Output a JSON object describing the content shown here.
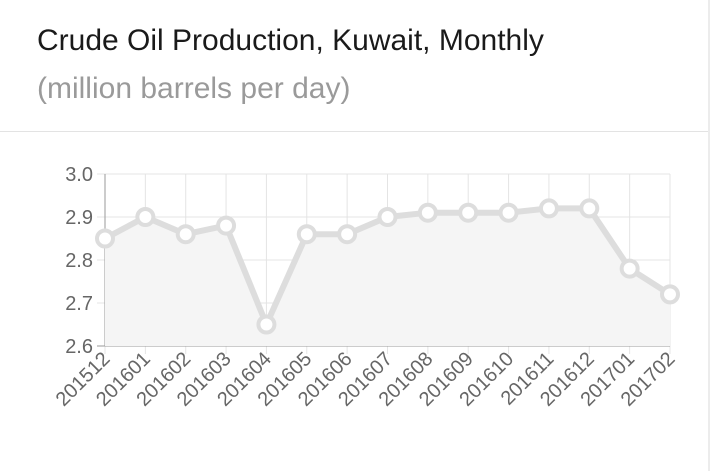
{
  "header": {
    "title": "Crude Oil Production, Kuwait, Monthly",
    "subtitle": "(million barrels per day)"
  },
  "chart_data": {
    "type": "line",
    "title": "Crude Oil Production, Kuwait, Monthly",
    "subtitle": "(million barrels per day)",
    "xlabel": "",
    "ylabel": "",
    "ylim": [
      2.6,
      3.0
    ],
    "yticks": [
      "2.6",
      "2.7",
      "2.8",
      "2.9",
      "3.0"
    ],
    "grid": true,
    "legend": "none",
    "categories": [
      "201512",
      "201601",
      "201602",
      "201603",
      "201604",
      "201605",
      "201606",
      "201607",
      "201608",
      "201609",
      "201610",
      "201611",
      "201612",
      "201701",
      "201702"
    ],
    "series": [
      {
        "values": [
          2.85,
          2.9,
          2.86,
          2.88,
          2.65,
          2.86,
          2.86,
          2.9,
          2.91,
          2.91,
          2.91,
          2.92,
          2.92,
          2.78,
          2.72
        ]
      }
    ],
    "colors": {
      "line": "#dddddd",
      "area": "#f5f5f5",
      "grid": "#e4e4e4",
      "axis": "#9a9a9a",
      "point_fill": "#ffffff",
      "point_stroke": "#dddddd"
    }
  }
}
